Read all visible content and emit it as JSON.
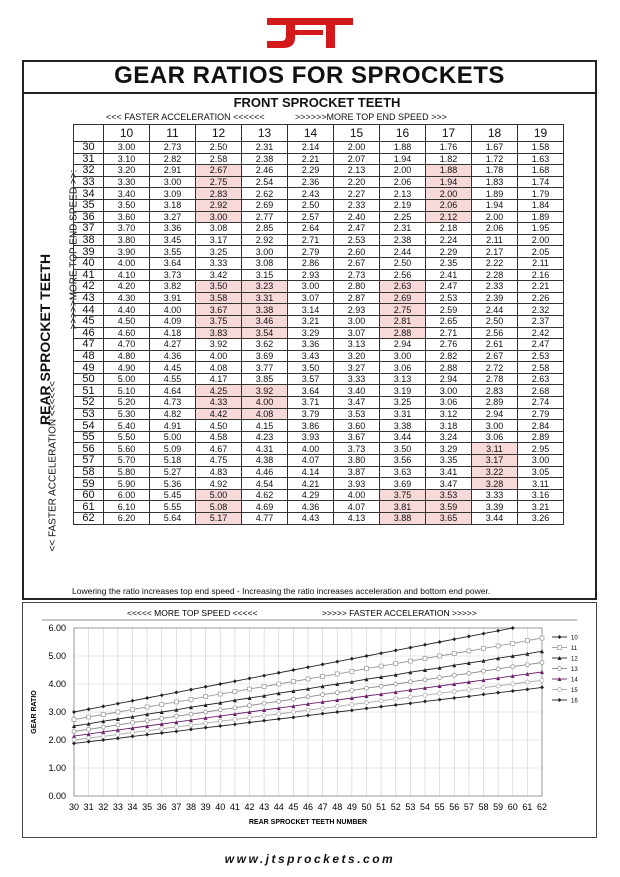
{
  "brand": {
    "logo": "JT",
    "accent": "#d3191c"
  },
  "title": "GEAR RATIOS FOR SPROCKETS",
  "front": {
    "title": "FRONT SPROCKET TEETH",
    "left_hint": "<<< FASTER  ACCELERATION <<<<<<",
    "right_hint": ">>>>>>MORE TOP END SPEED >>>",
    "teeth": [
      "10",
      "11",
      "12",
      "13",
      "14",
      "15",
      "16",
      "17",
      "18",
      "19"
    ]
  },
  "rear": {
    "title": "REAR SPROCKET TEETH",
    "hint_top": ">>>>>MORE TOP END SPEED >>:",
    "hint_bottom": "<< FASTER  ACCELERATION <<<<<<",
    "teeth": [
      "30",
      "31",
      "32",
      "33",
      "34",
      "35",
      "36",
      "37",
      "38",
      "39",
      "40",
      "41",
      "42",
      "43",
      "44",
      "45",
      "46",
      "47",
      "48",
      "49",
      "50",
      "51",
      "52",
      "53",
      "54",
      "55",
      "56",
      "57",
      "58",
      "59",
      "60",
      "61",
      "62"
    ]
  },
  "ratios": [
    [
      "3.00",
      "2.73",
      "2.50",
      "2.31",
      "2.14",
      "2.00",
      "1.88",
      "1.76",
      "1.67",
      "1.58"
    ],
    [
      "3.10",
      "2.82",
      "2.58",
      "2.38",
      "2.21",
      "2.07",
      "1.94",
      "1.82",
      "1.72",
      "1.63"
    ],
    [
      "3.20",
      "2.91",
      "2.67",
      "2.46",
      "2.29",
      "2.13",
      "2.00",
      "1.88",
      "1.78",
      "1.68"
    ],
    [
      "3.30",
      "3.00",
      "2.75",
      "2.54",
      "2.36",
      "2.20",
      "2.06",
      "1.94",
      "1.83",
      "1.74"
    ],
    [
      "3.40",
      "3.09",
      "2.83",
      "2.62",
      "2.43",
      "2.27",
      "2.13",
      "2.00",
      "1.89",
      "1.79"
    ],
    [
      "3.50",
      "3.18",
      "2.92",
      "2.69",
      "2.50",
      "2.33",
      "2.19",
      "2.06",
      "1.94",
      "1.84"
    ],
    [
      "3.60",
      "3.27",
      "3.00",
      "2.77",
      "2.57",
      "2.40",
      "2.25",
      "2.12",
      "2.00",
      "1.89"
    ],
    [
      "3.70",
      "3.36",
      "3.08",
      "2.85",
      "2.64",
      "2.47",
      "2.31",
      "2.18",
      "2.06",
      "1.95"
    ],
    [
      "3.80",
      "3.45",
      "3.17",
      "2.92",
      "2.71",
      "2.53",
      "2.38",
      "2.24",
      "2.11",
      "2.00"
    ],
    [
      "3.90",
      "3.55",
      "3.25",
      "3.00",
      "2.79",
      "2.60",
      "2.44",
      "2.29",
      "2.17",
      "2.05"
    ],
    [
      "4.00",
      "3.64",
      "3.33",
      "3.08",
      "2.86",
      "2.67",
      "2.50",
      "2.35",
      "2.22",
      "2.11"
    ],
    [
      "4.10",
      "3.73",
      "3.42",
      "3.15",
      "2.93",
      "2.73",
      "2.56",
      "2.41",
      "2.28",
      "2.16"
    ],
    [
      "4.20",
      "3.82",
      "3.50",
      "3.23",
      "3.00",
      "2.80",
      "2.63",
      "2.47",
      "2.33",
      "2.21"
    ],
    [
      "4.30",
      "3.91",
      "3.58",
      "3.31",
      "3.07",
      "2.87",
      "2.69",
      "2.53",
      "2.39",
      "2.26"
    ],
    [
      "4.40",
      "4.00",
      "3.67",
      "3.38",
      "3.14",
      "2.93",
      "2.75",
      "2.59",
      "2.44",
      "2.32"
    ],
    [
      "4.50",
      "4.09",
      "3.75",
      "3.46",
      "3.21",
      "3.00",
      "2.81",
      "2.65",
      "2.50",
      "2.37"
    ],
    [
      "4.60",
      "4.18",
      "3.83",
      "3.54",
      "3.29",
      "3.07",
      "2.88",
      "2.71",
      "2.56",
      "2.42"
    ],
    [
      "4.70",
      "4.27",
      "3.92",
      "3.62",
      "3.36",
      "3.13",
      "2.94",
      "2.76",
      "2.61",
      "2.47"
    ],
    [
      "4.80",
      "4.36",
      "4.00",
      "3.69",
      "3.43",
      "3.20",
      "3.00",
      "2.82",
      "2.67",
      "2.53"
    ],
    [
      "4.90",
      "4.45",
      "4.08",
      "3.77",
      "3.50",
      "3.27",
      "3.06",
      "2.88",
      "2.72",
      "2.58"
    ],
    [
      "5.00",
      "4.55",
      "4.17",
      "3.85",
      "3.57",
      "3.33",
      "3.13",
      "2.94",
      "2.78",
      "2.63"
    ],
    [
      "5.10",
      "4.64",
      "4.25",
      "3.92",
      "3.64",
      "3.40",
      "3.19",
      "3.00",
      "2.83",
      "2.68"
    ],
    [
      "5.20",
      "4.73",
      "4.33",
      "4.00",
      "3.71",
      "3.47",
      "3.25",
      "3.06",
      "2.89",
      "2.74"
    ],
    [
      "5.30",
      "4.82",
      "4.42",
      "4.08",
      "3.79",
      "3.53",
      "3.31",
      "3.12",
      "2.94",
      "2.79"
    ],
    [
      "5.40",
      "4.91",
      "4.50",
      "4.15",
      "3.86",
      "3.60",
      "3.38",
      "3.18",
      "3.00",
      "2.84"
    ],
    [
      "5.50",
      "5.00",
      "4.58",
      "4.23",
      "3.93",
      "3.67",
      "3.44",
      "3.24",
      "3.06",
      "2.89"
    ],
    [
      "5.60",
      "5.09",
      "4.67",
      "4.31",
      "4.00",
      "3.73",
      "3.50",
      "3.29",
      "3.11",
      "2.95"
    ],
    [
      "5.70",
      "5.18",
      "4.75",
      "4.38",
      "4.07",
      "3.80",
      "3.56",
      "3.35",
      "3.17",
      "3.00"
    ],
    [
      "5.80",
      "5.27",
      "4.83",
      "4.46",
      "4.14",
      "3.87",
      "3.63",
      "3.41",
      "3.22",
      "3.05"
    ],
    [
      "5.90",
      "5.36",
      "4.92",
      "4.54",
      "4.21",
      "3.93",
      "3.69",
      "3.47",
      "3.28",
      "3.11"
    ],
    [
      "6.00",
      "5.45",
      "5.00",
      "4.62",
      "4.29",
      "4.00",
      "3.75",
      "3.53",
      "3.33",
      "3.16"
    ],
    [
      "6.10",
      "5.55",
      "5.08",
      "4.69",
      "4.36",
      "4.07",
      "3.81",
      "3.59",
      "3.39",
      "3.21"
    ],
    [
      "6.20",
      "5.64",
      "5.17",
      "4.77",
      "4.43",
      "4.13",
      "3.88",
      "3.65",
      "3.44",
      "3.26"
    ]
  ],
  "note": "Lowering the ratio increases top end speed - Increasing the ratio increases acceleration and bottom end power.",
  "chart_data": {
    "type": "line",
    "hint_left": "<<<<<  MORE TOP SPEED <<<<<",
    "hint_right": ">>>>>  FASTER ACCELERATION  >>>>>",
    "xlabel": "REAR SPROCKET TEETH NUMBER",
    "ylabel": "GEAR RATIO",
    "x": [
      30,
      31,
      32,
      33,
      34,
      35,
      36,
      37,
      38,
      39,
      40,
      41,
      42,
      43,
      44,
      45,
      46,
      47,
      48,
      49,
      50,
      51,
      52,
      53,
      54,
      55,
      56,
      57,
      58,
      59,
      60,
      61,
      62
    ],
    "xlim": [
      30,
      62
    ],
    "ylim": [
      0,
      6
    ],
    "yticks": [
      "0.00",
      "1.00",
      "2.00",
      "3.00",
      "4.00",
      "5.00",
      "6.00"
    ],
    "grid": true,
    "legend_position": "right",
    "series": [
      {
        "name": "10",
        "front": 10,
        "color": "#222222",
        "marker": "diamond"
      },
      {
        "name": "11",
        "front": 11,
        "color": "#999999",
        "marker": "square-open"
      },
      {
        "name": "12",
        "front": 12,
        "color": "#222222",
        "marker": "triangle"
      },
      {
        "name": "13",
        "front": 13,
        "color": "#888888",
        "marker": "circle-open"
      },
      {
        "name": "14",
        "front": 14,
        "color": "#6b1f6b",
        "marker": "triangle"
      },
      {
        "name": "15",
        "front": 15,
        "color": "#aaaaaa",
        "marker": "circle-open"
      },
      {
        "name": "16",
        "front": 16,
        "color": "#222222",
        "marker": "diamond"
      }
    ]
  },
  "footer": "www.jtsprockets.com"
}
